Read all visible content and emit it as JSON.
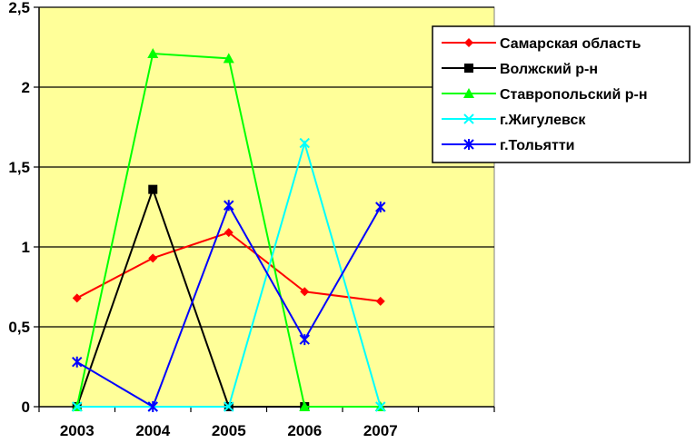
{
  "chart_data": {
    "type": "line",
    "title": "",
    "xlabel": "",
    "ylabel": "",
    "categories": [
      "2003",
      "2004",
      "2005",
      "2006",
      "2007"
    ],
    "ylim": [
      0,
      2.5
    ],
    "yticks": [
      "0",
      "0,5",
      "1",
      "1,5",
      "2",
      "2,5"
    ],
    "grid": "horizontal",
    "legend_position": "top-right",
    "plot_background": "#ffff99",
    "series": [
      {
        "name": "Самарская область",
        "color": "#ff0000",
        "marker": "diamond",
        "values": [
          0.68,
          0.93,
          1.09,
          0.72,
          0.66
        ]
      },
      {
        "name": "Волжский р-н",
        "color": "#000000",
        "marker": "square",
        "values": [
          0,
          1.36,
          0,
          0,
          null
        ]
      },
      {
        "name": "Ставропольский р-н",
        "color": "#00ff00",
        "marker": "triangle",
        "values": [
          0,
          2.21,
          2.18,
          0,
          0
        ]
      },
      {
        "name": "г.Жигулевск",
        "color": "#00ffff",
        "marker": "x",
        "values": [
          0,
          0,
          0,
          1.65,
          0
        ]
      },
      {
        "name": "г.Тольятти",
        "color": "#0000ff",
        "marker": "star",
        "values": [
          0.28,
          0,
          1.26,
          0.42,
          1.25
        ]
      }
    ]
  }
}
